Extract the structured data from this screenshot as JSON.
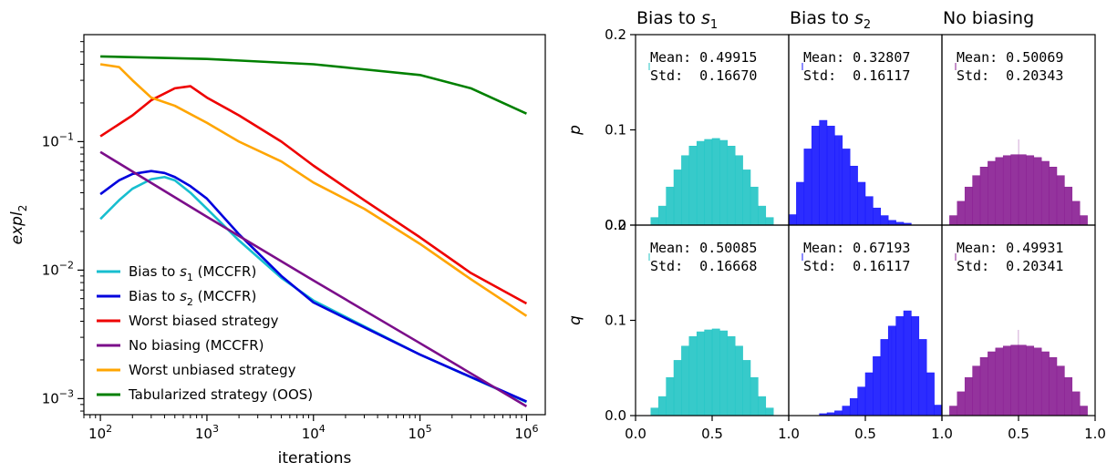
{
  "chart_data": [
    {
      "type": "line",
      "xlabel": "iterations",
      "ylabel": "expl",
      "ylabel_sub": "2",
      "xscale": "log",
      "yscale": "log",
      "xlim": [
        70,
        1500000
      ],
      "ylim": [
        0.00075,
        0.68
      ],
      "xticks": [
        {
          "value": 100,
          "base": "10",
          "exp": "2"
        },
        {
          "value": 1000,
          "base": "10",
          "exp": "3"
        },
        {
          "value": 10000,
          "base": "10",
          "exp": "4"
        },
        {
          "value": 100000,
          "base": "10",
          "exp": "5"
        },
        {
          "value": 1000000,
          "base": "10",
          "exp": "6"
        }
      ],
      "yticks": [
        {
          "value": 0.001,
          "base": "10",
          "exp": "−3"
        },
        {
          "value": 0.01,
          "base": "10",
          "exp": "−2"
        },
        {
          "value": 0.1,
          "base": "10",
          "exp": "−1"
        }
      ],
      "grid": false,
      "legend_position": "bottom-left",
      "series": [
        {
          "name": "Bias to s1 (MCCFR)",
          "label_main": "Bias to ",
          "label_var": "s",
          "label_sub": "1",
          "label_tail": " (MCCFR)",
          "color": "#17becf",
          "x": [
            100,
            150,
            200,
            300,
            400,
            500,
            700,
            1000,
            2000,
            5000,
            10000,
            100000,
            1000000
          ],
          "y": [
            0.025,
            0.035,
            0.043,
            0.051,
            0.053,
            0.05,
            0.04,
            0.03,
            0.017,
            0.0087,
            0.0058,
            0.0022,
            0.00094
          ]
        },
        {
          "name": "Bias to s2 (MCCFR)",
          "label_main": "Bias to ",
          "label_var": "s",
          "label_sub": "2",
          "label_tail": " (MCCFR)",
          "color": "#0000dd",
          "x": [
            100,
            150,
            200,
            300,
            400,
            500,
            700,
            1000,
            2000,
            5000,
            10000,
            100000,
            1000000
          ],
          "y": [
            0.039,
            0.05,
            0.056,
            0.059,
            0.057,
            0.053,
            0.045,
            0.036,
            0.019,
            0.009,
            0.0056,
            0.0022,
            0.00095
          ]
        },
        {
          "name": "Worst biased strategy",
          "label_main": "Worst biased strategy",
          "label_var": "",
          "label_sub": "",
          "label_tail": "",
          "color": "#ee0000",
          "x": [
            100,
            200,
            300,
            500,
            700,
            1000,
            2000,
            5000,
            10000,
            30000,
            100000,
            300000,
            1000000
          ],
          "y": [
            0.11,
            0.16,
            0.21,
            0.26,
            0.27,
            0.22,
            0.16,
            0.1,
            0.065,
            0.035,
            0.018,
            0.0095,
            0.0055
          ]
        },
        {
          "name": "No biasing (MCCFR)",
          "label_main": "No biasing (MCCFR)",
          "label_var": "",
          "label_sub": "",
          "label_tail": "",
          "color": "#7b0e8a",
          "x": [
            100,
            1000,
            10000,
            100000,
            1000000
          ],
          "y": [
            0.083,
            0.026,
            0.0083,
            0.0027,
            0.00087
          ]
        },
        {
          "name": "Worst unbiased strategy",
          "label_main": "Worst unbiased strategy",
          "label_var": "",
          "label_sub": "",
          "label_tail": "",
          "color": "#ffa500",
          "x": [
            100,
            150,
            200,
            300,
            500,
            1000,
            2000,
            5000,
            10000,
            30000,
            100000,
            300000,
            1000000
          ],
          "y": [
            0.4,
            0.38,
            0.3,
            0.22,
            0.19,
            0.14,
            0.1,
            0.07,
            0.048,
            0.03,
            0.016,
            0.0085,
            0.0044
          ]
        },
        {
          "name": "Tabularized strategy (OOS)",
          "label_main": "Tabularized strategy (OOS)",
          "label_var": "",
          "label_sub": "",
          "label_tail": "",
          "color": "#008000",
          "x": [
            100,
            1000,
            10000,
            100000,
            300000,
            1000000
          ],
          "y": [
            0.46,
            0.44,
            0.4,
            0.33,
            0.26,
            0.165
          ]
        }
      ]
    },
    {
      "type": "bar",
      "layout": "histogram-grid",
      "xlim": [
        0.0,
        1.0
      ],
      "ylim": [
        0.0,
        0.2
      ],
      "xticks": [
        "0.0",
        "0.5",
        "1.0"
      ],
      "yticks": [
        "0.0",
        "0.1",
        "0.2"
      ],
      "bin_width": 0.05,
      "column_titles": [
        {
          "main": "Bias to ",
          "var": "s",
          "sub": "1"
        },
        {
          "main": "Bias to ",
          "var": "s",
          "sub": "2"
        },
        {
          "main": "No biasing",
          "var": "",
          "sub": ""
        }
      ],
      "row_labels": [
        "p",
        "q"
      ],
      "stat_labels": {
        "mean": "Mean:",
        "std": "Std:"
      },
      "panels": [
        {
          "row": 0,
          "col": 0,
          "color": "#26c6c6",
          "mean": "0.49915",
          "std": "0.16670",
          "bins_start": 0.1,
          "values": [
            0.008,
            0.02,
            0.04,
            0.058,
            0.073,
            0.083,
            0.088,
            0.09,
            0.091,
            0.089,
            0.083,
            0.073,
            0.058,
            0.04,
            0.02,
            0.008
          ]
        },
        {
          "row": 0,
          "col": 1,
          "color": "#1a1aff",
          "mean": "0.32807",
          "std": "0.16117",
          "bins_start": 0.0,
          "values": [
            0.011,
            0.045,
            0.08,
            0.104,
            0.11,
            0.104,
            0.094,
            0.08,
            0.062,
            0.045,
            0.03,
            0.018,
            0.01,
            0.005,
            0.003,
            0.002
          ]
        },
        {
          "row": 0,
          "col": 2,
          "color": "#8b2295",
          "mean": "0.50069",
          "std": "0.20343",
          "bins_start": 0.05,
          "values": [
            0.01,
            0.025,
            0.04,
            0.052,
            0.061,
            0.067,
            0.071,
            0.073,
            0.074,
            0.074,
            0.073,
            0.071,
            0.067,
            0.061,
            0.052,
            0.04,
            0.025,
            0.01
          ]
        },
        {
          "row": 1,
          "col": 0,
          "color": "#26c6c6",
          "mean": "0.50085",
          "std": "0.16668",
          "bins_start": 0.1,
          "values": [
            0.008,
            0.02,
            0.04,
            0.058,
            0.073,
            0.083,
            0.088,
            0.09,
            0.091,
            0.089,
            0.083,
            0.073,
            0.058,
            0.04,
            0.02,
            0.008
          ]
        },
        {
          "row": 1,
          "col": 1,
          "color": "#1a1aff",
          "mean": "0.67193",
          "std": "0.16117",
          "bins_start": 0.2,
          "values": [
            0.002,
            0.003,
            0.005,
            0.01,
            0.018,
            0.03,
            0.045,
            0.062,
            0.08,
            0.094,
            0.104,
            0.11,
            0.104,
            0.08,
            0.045,
            0.011
          ]
        },
        {
          "row": 1,
          "col": 2,
          "color": "#8b2295",
          "mean": "0.49931",
          "std": "0.20341",
          "bins_start": 0.05,
          "values": [
            0.01,
            0.025,
            0.04,
            0.052,
            0.061,
            0.067,
            0.071,
            0.073,
            0.074,
            0.074,
            0.073,
            0.071,
            0.067,
            0.061,
            0.052,
            0.04,
            0.025,
            0.01
          ]
        }
      ]
    }
  ]
}
